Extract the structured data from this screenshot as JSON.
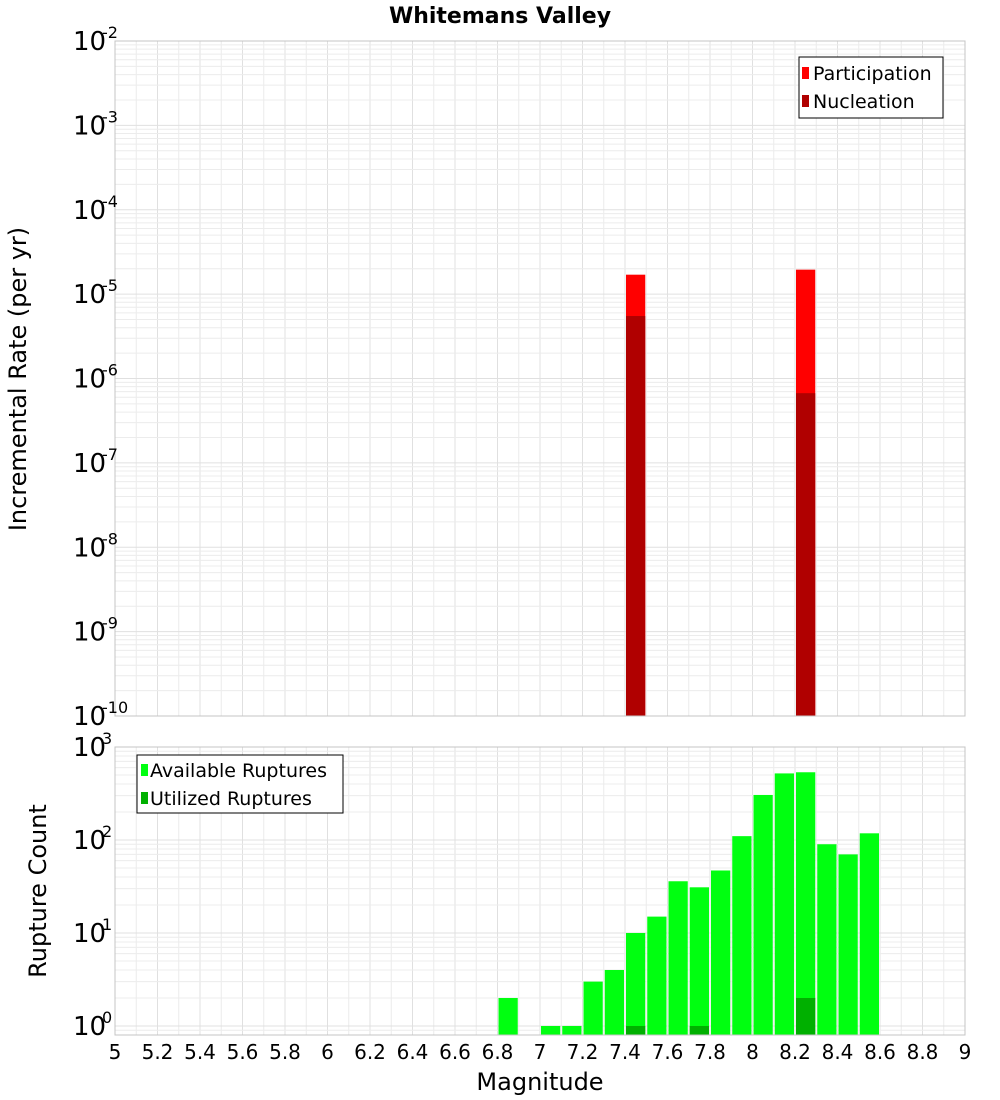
{
  "title": "Whitemans Valley",
  "xlabel": "Magnitude",
  "x_ticks": [
    "5",
    "5.2",
    "5.4",
    "5.6",
    "5.8",
    "6",
    "6.2",
    "6.4",
    "6.6",
    "6.8",
    "7",
    "7.2",
    "7.4",
    "7.6",
    "7.8",
    "8",
    "8.2",
    "8.4",
    "8.6",
    "8.8",
    "9"
  ],
  "colors": {
    "participation": "#ff0000",
    "nucleation": "#b00000",
    "available": "#00ff10",
    "utilized": "#00b000"
  },
  "chart_data": [
    {
      "type": "bar",
      "ylabel": "Incremental Rate (per yr)",
      "yscale": "log",
      "ylim": [
        1e-10,
        0.01
      ],
      "xlim": [
        5,
        9
      ],
      "y_tick_exponents": [
        "-10",
        "-9",
        "-8",
        "-7",
        "-6",
        "-5",
        "-4",
        "-3",
        "-2"
      ],
      "legend_position": "top-right",
      "grid": true,
      "bar_width": 0.1,
      "series": [
        {
          "name": "Participation",
          "color": "#ff0000",
          "points": [
            {
              "x": 7.45,
              "y": 1.7e-05
            },
            {
              "x": 8.25,
              "y": 1.95e-05
            }
          ]
        },
        {
          "name": "Nucleation",
          "color": "#b00000",
          "points": [
            {
              "x": 7.45,
              "y": 5.5e-06
            },
            {
              "x": 8.25,
              "y": 6.7e-07
            }
          ]
        }
      ]
    },
    {
      "type": "bar",
      "ylabel": "Rupture Count",
      "yscale": "log",
      "ylim": [
        0.8,
        1000
      ],
      "xlim": [
        5,
        9
      ],
      "y_tick_exponents": [
        "0",
        "1",
        "2",
        "3"
      ],
      "legend_position": "top-left",
      "grid": true,
      "bar_width": 0.1,
      "series": [
        {
          "name": "Available Ruptures",
          "color": "#00ff10",
          "points": [
            {
              "x": 6.85,
              "y": 2
            },
            {
              "x": 7.05,
              "y": 1
            },
            {
              "x": 7.15,
              "y": 1
            },
            {
              "x": 7.25,
              "y": 3
            },
            {
              "x": 7.35,
              "y": 4
            },
            {
              "x": 7.45,
              "y": 10
            },
            {
              "x": 7.55,
              "y": 15
            },
            {
              "x": 7.65,
              "y": 36
            },
            {
              "x": 7.75,
              "y": 31
            },
            {
              "x": 7.85,
              "y": 47
            },
            {
              "x": 7.95,
              "y": 110
            },
            {
              "x": 8.05,
              "y": 305
            },
            {
              "x": 8.15,
              "y": 520
            },
            {
              "x": 8.25,
              "y": 535
            },
            {
              "x": 8.35,
              "y": 90
            },
            {
              "x": 8.45,
              "y": 70
            },
            {
              "x": 8.55,
              "y": 118
            }
          ]
        },
        {
          "name": "Utilized Ruptures",
          "color": "#00b000",
          "points": [
            {
              "x": 7.45,
              "y": 1
            },
            {
              "x": 7.75,
              "y": 1
            },
            {
              "x": 8.25,
              "y": 2
            }
          ]
        }
      ]
    }
  ]
}
